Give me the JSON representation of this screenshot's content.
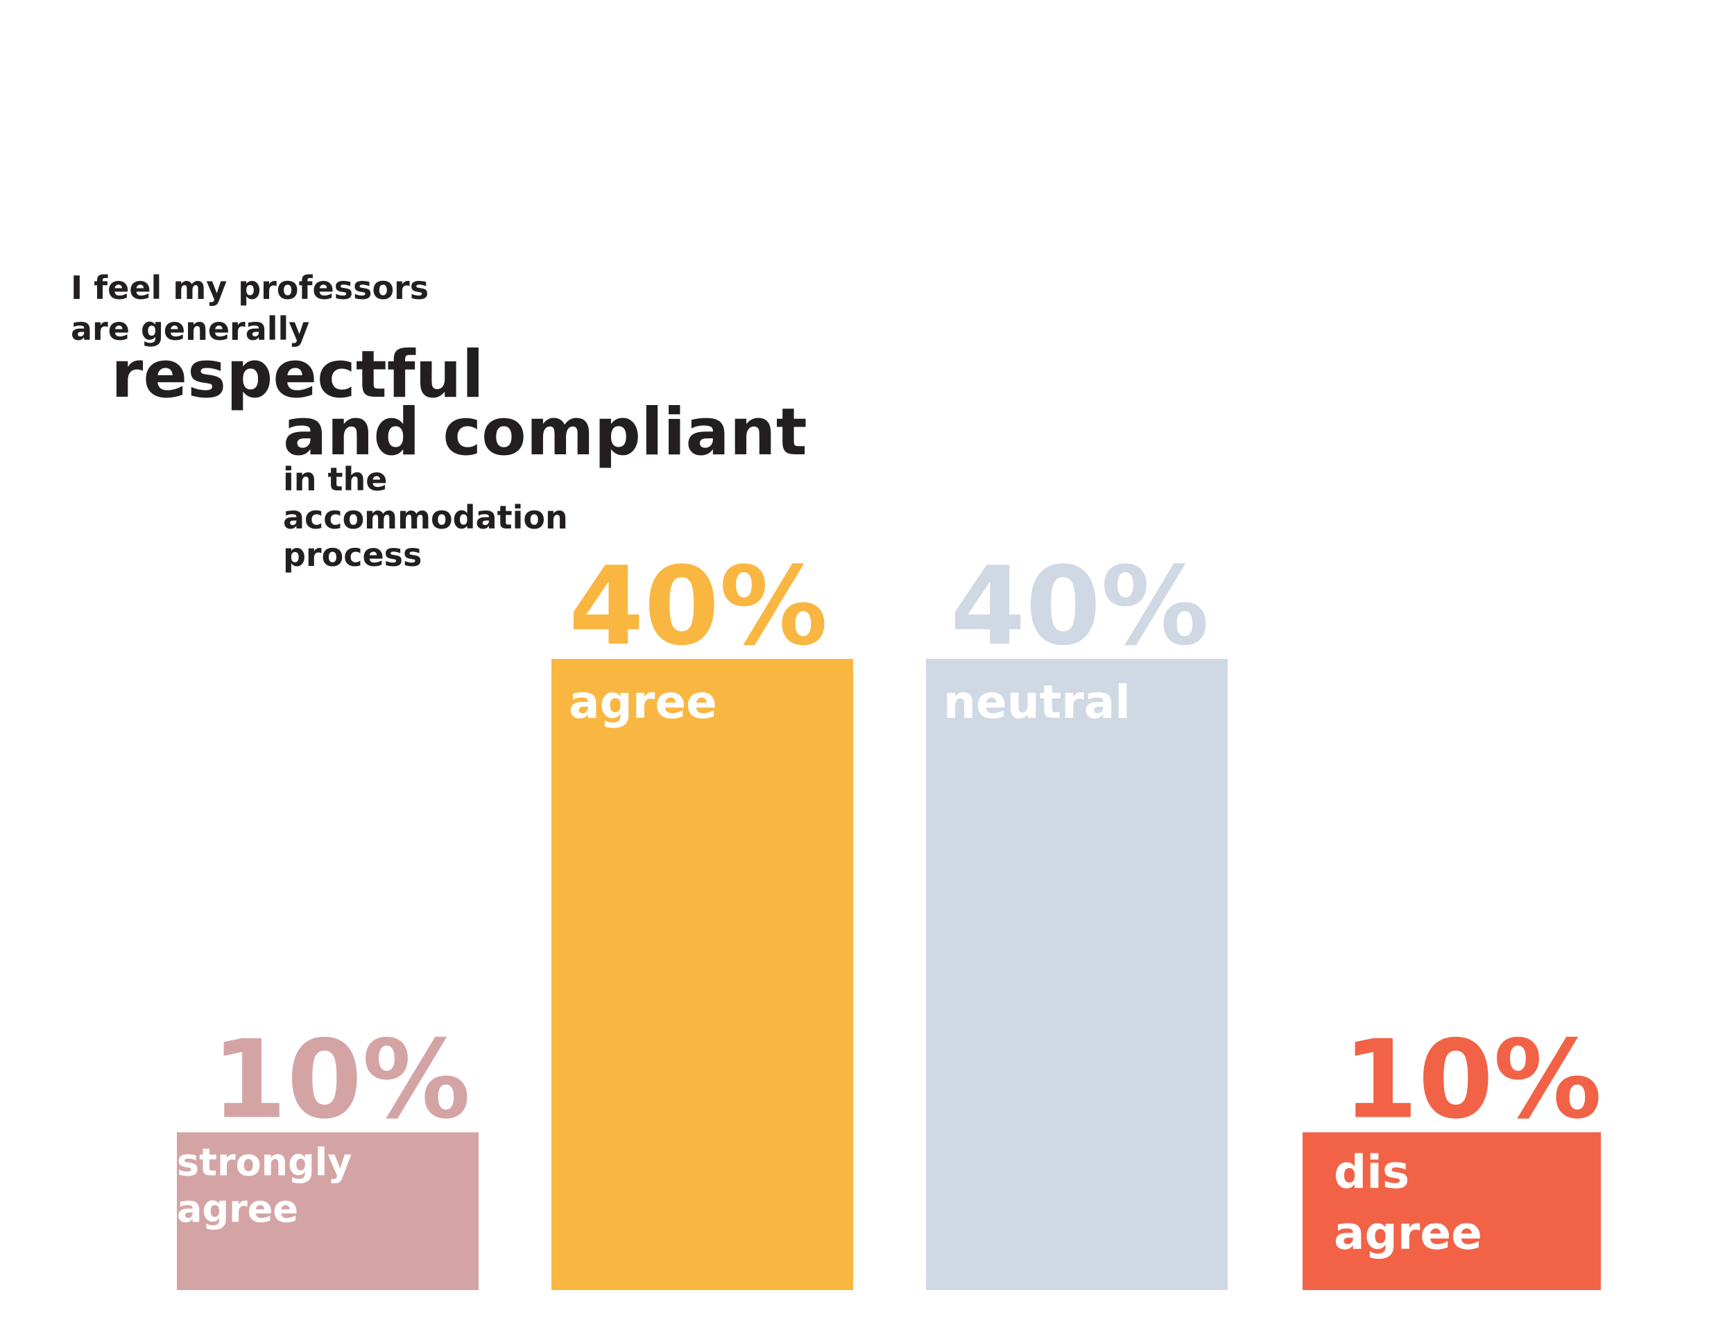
{
  "chart_data": {
    "type": "bar",
    "title_lines": [
      "I feel my professors",
      "are generally",
      "respectful",
      "and compliant",
      "in the",
      "accommodation",
      "process"
    ],
    "categories": [
      "strongly agree",
      "agree",
      "neutral",
      "disagree"
    ],
    "values": [
      10,
      40,
      40,
      10
    ],
    "value_labels": [
      "10%",
      "40%",
      "40%",
      "10%"
    ],
    "bar_labels": [
      [
        "strongly",
        "agree"
      ],
      [
        "agree"
      ],
      [
        "neutral"
      ],
      [
        "dis",
        "agree"
      ]
    ],
    "colors": [
      "#d4a4a5",
      "#f9b640",
      "#cfd8e3",
      "#f26246"
    ],
    "unit": "%",
    "ylim": [
      0,
      40
    ],
    "grid": false,
    "legend": "none"
  }
}
